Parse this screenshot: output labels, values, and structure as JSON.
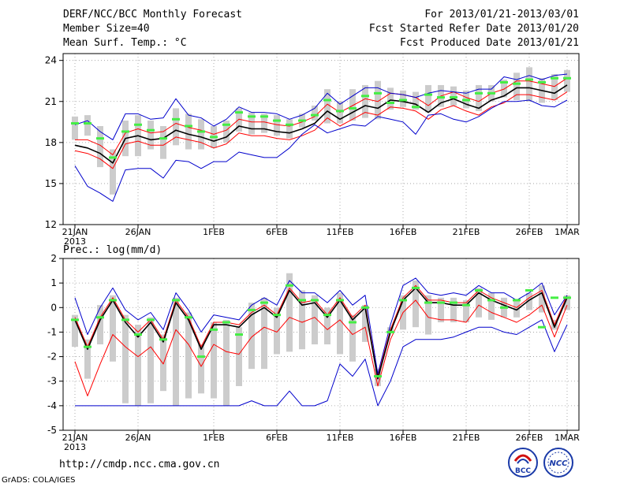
{
  "header": {
    "title": "DERF/NCC/BCC Monthly Forecast",
    "member_size": "Member Size=40",
    "variable": "Mean Surf. Temp.: °C",
    "forecast_range": "For 2013/01/21-2013/03/01",
    "started_refer": "Fcst Started Refer Date 2013/01/20",
    "produced": "Fcst Produced Date 2013/01/21"
  },
  "footer": {
    "url": "http://cmdp.ncc.cma.gov.cn",
    "credit": "GrADS: COLA/IGES",
    "logo_bcc_text": "BCC",
    "logo_ncc_text": "NCC"
  },
  "colors": {
    "mean": "#000000",
    "spread": "#ff0000",
    "minmax": "#0000cc",
    "median": "#44ee44",
    "box": "#cccccc",
    "grid": "#999999"
  },
  "chart_data": [
    {
      "type": "line",
      "title": "Mean Surf. Temp.: °C",
      "ylabel": "°C",
      "x_tick_labels": [
        "21JAN",
        "26JAN",
        "1FEB",
        "6FEB",
        "11FEB",
        "16FEB",
        "21FEB",
        "26FEB",
        "1MAR"
      ],
      "x_year_label": "2013",
      "x_days": 40,
      "ylim": [
        12,
        24.5
      ],
      "yticks": [
        12,
        15,
        18,
        21,
        24
      ],
      "median": [
        19.4,
        19.4,
        18.3,
        16.9,
        18.8,
        19.3,
        18.9,
        18.3,
        19.7,
        19.2,
        18.8,
        18.4,
        19.3,
        20.2,
        19.9,
        19.9,
        19.6,
        19.3,
        19.6,
        20.0,
        21.1,
        20.3,
        20.5,
        21.4,
        21.6,
        20.9,
        21.1,
        20.6,
        21.5,
        21.3,
        21.3,
        21.1,
        21.6,
        21.6,
        22.4,
        22.3,
        22.6,
        22.4,
        22.7,
        22.7
      ],
      "mean": [
        17.8,
        17.6,
        17.2,
        16.5,
        18.3,
        18.5,
        18.2,
        18.3,
        18.9,
        18.6,
        18.4,
        18.1,
        18.4,
        19.2,
        19.0,
        19.0,
        18.8,
        18.7,
        19.0,
        19.4,
        20.3,
        19.7,
        20.2,
        20.7,
        20.5,
        21.1,
        21.0,
        20.8,
        20.2,
        20.9,
        21.2,
        20.8,
        20.5,
        21.1,
        21.4,
        22.0,
        22.0,
        21.8,
        21.6,
        22.2
      ],
      "series": [
        {
          "name": "mean+sd",
          "role": "spread",
          "values": [
            18.2,
            18.2,
            17.8,
            17.1,
            18.7,
            19.0,
            18.7,
            18.8,
            19.4,
            19.1,
            18.9,
            18.6,
            18.9,
            19.7,
            19.5,
            19.5,
            19.3,
            19.2,
            19.5,
            19.9,
            20.8,
            20.2,
            20.7,
            21.2,
            21.0,
            21.6,
            21.5,
            21.3,
            20.7,
            21.4,
            21.7,
            21.3,
            21.0,
            21.6,
            21.9,
            22.5,
            22.5,
            22.3,
            22.1,
            22.7
          ]
        },
        {
          "name": "mean-sd",
          "role": "spread",
          "values": [
            17.4,
            17.2,
            16.8,
            16.1,
            17.9,
            18.1,
            17.8,
            17.8,
            18.4,
            18.2,
            18.0,
            17.6,
            17.9,
            18.7,
            18.5,
            18.5,
            18.3,
            18.2,
            18.5,
            18.9,
            19.8,
            19.2,
            19.7,
            20.2,
            20.0,
            20.6,
            20.5,
            20.3,
            19.7,
            20.4,
            20.7,
            20.3,
            20.0,
            20.6,
            20.9,
            21.5,
            21.5,
            21.3,
            21.1,
            21.7
          ]
        },
        {
          "name": "max",
          "role": "minmax",
          "values": [
            19.3,
            19.6,
            18.8,
            18.2,
            20.1,
            20.1,
            19.7,
            19.8,
            21.2,
            20.0,
            19.8,
            19.2,
            19.7,
            20.6,
            20.2,
            20.2,
            20.1,
            19.7,
            20.0,
            20.5,
            21.6,
            20.8,
            21.4,
            22.0,
            22.0,
            21.6,
            21.5,
            21.3,
            21.6,
            21.8,
            21.7,
            21.6,
            21.9,
            21.9,
            22.8,
            22.6,
            22.9,
            22.6,
            22.9,
            23.0
          ]
        },
        {
          "name": "min",
          "role": "minmax",
          "values": [
            16.3,
            14.8,
            14.3,
            13.7,
            16.0,
            16.1,
            16.1,
            15.4,
            16.7,
            16.6,
            16.1,
            16.6,
            16.6,
            17.3,
            17.1,
            16.9,
            16.9,
            17.6,
            18.6,
            19.3,
            18.7,
            19.0,
            19.3,
            19.2,
            19.9,
            19.7,
            19.5,
            18.6,
            20.0,
            20.1,
            19.7,
            19.5,
            19.9,
            20.5,
            21.0,
            21.0,
            21.1,
            20.7,
            20.6,
            21.1
          ]
        }
      ],
      "box_low": [
        18.2,
        18.5,
        16.2,
        14.2,
        17.0,
        17.0,
        17.5,
        16.8,
        17.8,
        17.5,
        17.5,
        17.6,
        18.0,
        18.8,
        18.6,
        18.7,
        18.5,
        18.3,
        19.1,
        19.6,
        19.4,
        19.4,
        19.6,
        19.8,
        19.7,
        20.4,
        20.6,
        20.4,
        20.2,
        20.6,
        20.7,
        20.5,
        20.3,
        21.0,
        21.3,
        21.1,
        21.0,
        20.9,
        21.1,
        21.7
      ],
      "box_high": [
        19.9,
        20.0,
        19.2,
        17.5,
        19.6,
        20.0,
        19.6,
        19.2,
        20.5,
        20.1,
        19.7,
        19.2,
        19.6,
        20.5,
        20.2,
        20.1,
        20.0,
        19.7,
        20.1,
        20.7,
        21.9,
        21.0,
        21.9,
        22.2,
        22.5,
        22.0,
        21.8,
        21.7,
        22.2,
        22.2,
        22.1,
        21.8,
        22.2,
        22.2,
        22.6,
        23.1,
        23.5,
        22.7,
        23.0,
        23.3
      ]
    },
    {
      "type": "line",
      "title": "Prec.: log(mm/d)",
      "ylabel": "log(mm/d)",
      "x_tick_labels": [
        "21JAN",
        "26JAN",
        "1FEB",
        "6FEB",
        "11FEB",
        "16FEB",
        "21FEB",
        "26FEB",
        "1MAR"
      ],
      "x_year_label": "2013",
      "x_days": 40,
      "ylim": [
        -5,
        2
      ],
      "yticks": [
        -5,
        -4,
        -3,
        -2,
        -1,
        0,
        1,
        2
      ],
      "median": [
        -0.5,
        -1.6,
        -0.4,
        0.3,
        -0.5,
        -1.1,
        -0.5,
        -1.3,
        0.3,
        -0.4,
        -2.0,
        -0.9,
        -0.6,
        -1.1,
        -0.1,
        0.2,
        -0.3,
        0.9,
        0.3,
        0.3,
        -0.3,
        0.3,
        -0.6,
        0.0,
        -2.8,
        -1.0,
        0.3,
        0.8,
        0.2,
        0.2,
        0.2,
        0.1,
        0.7,
        0.3,
        0.0,
        0.3,
        0.7,
        -0.8,
        0.4,
        0.4
      ],
      "mean": [
        -0.5,
        -1.7,
        -0.5,
        0.3,
        -0.6,
        -1.2,
        -0.6,
        -1.4,
        0.2,
        -0.5,
        -1.7,
        -0.7,
        -0.7,
        -0.8,
        -0.3,
        0.0,
        -0.4,
        0.7,
        0.1,
        0.2,
        -0.4,
        0.3,
        -0.5,
        0.0,
        -2.9,
        -1.0,
        0.3,
        0.8,
        0.2,
        0.2,
        0.1,
        0.1,
        0.6,
        0.3,
        0.1,
        -0.1,
        0.3,
        0.6,
        -0.8,
        0.4
      ],
      "series": [
        {
          "name": "mean+sd",
          "role": "spread",
          "values": [
            -0.4,
            -1.6,
            -0.4,
            0.4,
            -0.5,
            -1.0,
            -0.5,
            -1.3,
            0.3,
            -0.4,
            -1.6,
            -0.6,
            -0.6,
            -0.7,
            -0.2,
            0.1,
            -0.3,
            0.8,
            0.2,
            0.3,
            -0.3,
            0.4,
            -0.4,
            0.1,
            -2.8,
            -0.9,
            0.4,
            0.9,
            0.3,
            0.3,
            0.2,
            0.2,
            0.7,
            0.4,
            0.2,
            0.0,
            0.4,
            0.7,
            -0.7,
            0.5
          ]
        },
        {
          "name": "mean-sd",
          "role": "spread",
          "values": [
            -2.2,
            -3.6,
            -2.3,
            -1.1,
            -1.6,
            -2.0,
            -1.6,
            -2.3,
            -0.9,
            -1.5,
            -2.4,
            -1.5,
            -1.8,
            -1.9,
            -1.2,
            -0.8,
            -1.0,
            -0.4,
            -0.6,
            -0.4,
            -0.9,
            -0.5,
            -1.1,
            -0.8,
            -3.2,
            -1.3,
            -0.2,
            0.3,
            -0.4,
            -0.5,
            -0.5,
            -0.6,
            0.1,
            -0.2,
            -0.4,
            -0.6,
            -0.3,
            0.1,
            -1.2,
            0.1
          ]
        },
        {
          "name": "max",
          "role": "minmax",
          "values": [
            0.4,
            -1.1,
            0.0,
            0.8,
            -0.1,
            -0.5,
            -0.2,
            -0.9,
            0.6,
            -0.1,
            -1.0,
            -0.3,
            -0.4,
            -0.5,
            0.1,
            0.4,
            0.1,
            1.1,
            0.6,
            0.6,
            0.2,
            0.7,
            0.1,
            0.5,
            -2.7,
            -0.7,
            0.9,
            1.2,
            0.6,
            0.5,
            0.6,
            0.5,
            0.9,
            0.6,
            0.6,
            0.3,
            0.6,
            1.0,
            -0.3,
            0.5
          ]
        },
        {
          "name": "min",
          "role": "minmax",
          "values": [
            -4.0,
            -4.0,
            -4.0,
            -4.0,
            -4.0,
            -4.0,
            -4.0,
            -4.0,
            -4.0,
            -4.0,
            -4.0,
            -4.0,
            -4.0,
            -4.0,
            -3.8,
            -4.0,
            -4.0,
            -3.4,
            -4.0,
            -4.0,
            -3.8,
            -2.3,
            -2.8,
            -2.1,
            -4.0,
            -3.0,
            -1.6,
            -1.3,
            -1.3,
            -1.3,
            -1.2,
            -1.0,
            -0.8,
            -0.8,
            -1.0,
            -1.1,
            -0.8,
            -0.5,
            -1.8,
            -0.7
          ]
        }
      ],
      "box_low": [
        -1.6,
        -2.9,
        -1.5,
        -2.2,
        -3.9,
        -4.0,
        -3.9,
        -3.4,
        -4.0,
        -3.7,
        -3.5,
        -3.7,
        -4.0,
        -3.2,
        -2.5,
        -2.5,
        -1.9,
        -1.8,
        -1.7,
        -1.5,
        -1.5,
        -1.9,
        -2.2,
        -1.4,
        -3.2,
        -1.0,
        -0.9,
        -0.8,
        -1.1,
        -0.6,
        -0.6,
        -0.6,
        -0.4,
        -0.5,
        -0.4,
        -0.4,
        -0.1,
        -0.2,
        -0.9,
        -0.1
      ],
      "box_high": [
        -0.3,
        -1.3,
        0.1,
        0.5,
        -0.3,
        -0.7,
        -0.4,
        -1.1,
        0.4,
        -0.2,
        -1.5,
        -0.6,
        -0.5,
        -0.8,
        0.2,
        0.4,
        0.0,
        1.4,
        0.7,
        0.5,
        0.0,
        0.6,
        -0.3,
        0.1,
        -2.5,
        -0.8,
        0.5,
        1.1,
        0.5,
        0.4,
        0.4,
        0.3,
        0.8,
        0.6,
        0.4,
        0.3,
        0.6,
        0.9,
        -0.5,
        0.5
      ]
    }
  ]
}
